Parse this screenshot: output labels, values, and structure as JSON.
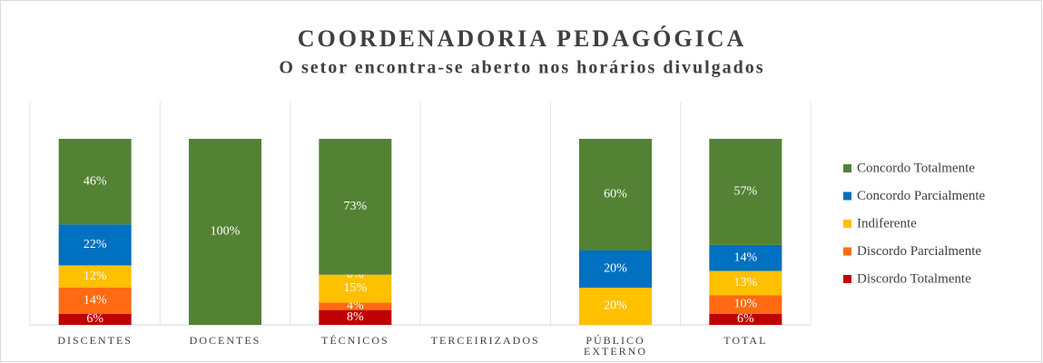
{
  "chart_data": {
    "type": "stacked_bar",
    "title": "COORDENADORIA PEDAGÓGICA",
    "subtitle": "O setor encontra-se aberto nos horários divulgados",
    "categories": [
      "DISCENTES",
      "DOCENTES",
      "TÉCNICOS",
      "TERCEIRIZADOS",
      "PÚBLICO EXTERNO",
      "TOTAL"
    ],
    "ylim": [
      0,
      100
    ],
    "series": [
      {
        "name": "Discordo Totalmente",
        "color": "#c00000",
        "values": [
          6,
          0,
          8,
          null,
          0,
          6
        ],
        "value_labels": [
          "6%",
          "0%",
          "8%",
          null,
          "0%",
          "6%"
        ]
      },
      {
        "name": "Discordo Parcialmente",
        "color": "#ff6a13",
        "values": [
          14,
          0,
          4,
          null,
          0,
          10
        ],
        "value_labels": [
          "14%",
          "0%",
          "4%",
          null,
          "0%",
          "10%"
        ]
      },
      {
        "name": "Indiferente",
        "color": "#ffc000",
        "values": [
          12,
          0,
          15,
          null,
          20,
          13
        ],
        "value_labels": [
          "12%",
          "0%",
          "15%",
          null,
          "20%",
          "13%"
        ]
      },
      {
        "name": "Concordo Parcialmente",
        "color": "#0070c0",
        "values": [
          22,
          0,
          0,
          null,
          20,
          14
        ],
        "value_labels": [
          "22%",
          "0%",
          "0%",
          null,
          "20%",
          "14%"
        ]
      },
      {
        "name": "Concordo Totalmente",
        "color": "#548235",
        "values": [
          46,
          100,
          73,
          null,
          60,
          57
        ],
        "value_labels": [
          "46%",
          "100%",
          "73%",
          null,
          "60%",
          "57%"
        ]
      }
    ]
  }
}
